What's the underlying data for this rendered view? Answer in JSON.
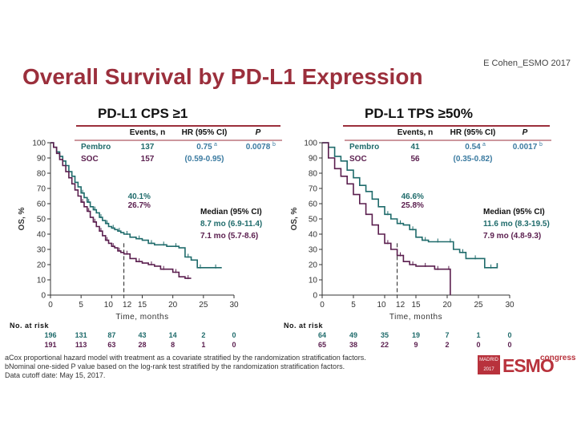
{
  "slide": {
    "title": "Overall Survival by PD-L1 Expression",
    "credit": "E Cohen_ESMO 2017",
    "footnotes": [
      "aCox proportional hazard model with treatment as a covariate stratified by the randomization stratification factors.",
      "bNominal one-sided P value based on the log-rank test stratified by the randomization stratification factors.",
      "Data cutoff date: May 15, 2017."
    ],
    "logo": {
      "city": "MADRID 2017",
      "brand": "ESMO",
      "sub": "congress"
    },
    "colors": {
      "title": "#9b2f3c",
      "pembro": "#1f6b6b",
      "soc": "#5a1e4e",
      "stats": "#3a7aa0"
    }
  },
  "chart_data": [
    {
      "type": "line",
      "title": "PD-L1 CPS ≥1",
      "xlabel": "Time, months",
      "ylabel": "OS, %",
      "xlim": [
        0,
        30
      ],
      "ylim": [
        0,
        100
      ],
      "xticks": [
        0,
        5,
        10,
        12,
        15,
        20,
        25,
        30
      ],
      "yticks": [
        0,
        10,
        20,
        30,
        40,
        50,
        60,
        70,
        80,
        90,
        100
      ],
      "marker_x": 12,
      "marker_labels": [
        "40.1%",
        "26.7%"
      ],
      "table": {
        "headers": [
          "Events, n",
          "HR (95% CI)",
          "P"
        ],
        "rows": [
          {
            "arm": "Pembro",
            "events": "137",
            "hr": "0.75",
            "hr_sup": "a",
            "p": "0.0078",
            "p_sup": "b"
          },
          {
            "arm": "SOC",
            "events": "157",
            "hr": "(0.59-0.95)",
            "hr_sup": "",
            "p": "",
            "p_sup": ""
          }
        ]
      },
      "median": {
        "header": "Median (95% CI)",
        "pembro": "8.7 mo (6.9-11.4)",
        "soc": "7.1 mo (5.7-8.6)"
      },
      "risk": {
        "label": "No. at risk",
        "times": [
          0,
          5,
          10,
          15,
          20,
          25,
          30
        ],
        "pembro": [
          "196",
          "131",
          "87",
          "43",
          "14",
          "2",
          "0"
        ],
        "soc": [
          "191",
          "113",
          "63",
          "28",
          "8",
          "1",
          "0"
        ]
      },
      "series": [
        {
          "name": "Pembro",
          "x": [
            0,
            0.5,
            1,
            1.5,
            2,
            2.5,
            3,
            3.5,
            4,
            4.5,
            5,
            5.5,
            6,
            6.5,
            7,
            7.5,
            8,
            8.5,
            9,
            9.5,
            10,
            10.5,
            11,
            11.5,
            12,
            13,
            14,
            15,
            16,
            17,
            18,
            19,
            20,
            21,
            22,
            23,
            24,
            25,
            26,
            28
          ],
          "y": [
            100,
            97,
            94,
            91,
            88,
            85,
            81,
            78,
            74,
            71,
            67,
            64,
            61,
            58,
            56,
            54,
            51,
            49,
            47,
            45,
            44,
            43,
            42,
            41,
            40,
            38,
            37,
            36,
            34,
            33,
            33,
            32,
            32,
            31,
            25,
            23,
            18,
            18,
            18,
            18
          ]
        },
        {
          "name": "SOC",
          "x": [
            0,
            0.5,
            1,
            1.5,
            2,
            2.5,
            3,
            3.5,
            4,
            4.5,
            5,
            5.5,
            6,
            6.5,
            7,
            7.5,
            8,
            8.5,
            9,
            9.5,
            10,
            10.5,
            11,
            11.5,
            12,
            13,
            14,
            15,
            16,
            17,
            18,
            19,
            20,
            21,
            22,
            23
          ],
          "y": [
            100,
            97,
            93,
            89,
            85,
            81,
            77,
            73,
            69,
            65,
            61,
            58,
            55,
            51,
            48,
            45,
            42,
            39,
            36,
            34,
            32,
            31,
            29,
            28,
            27,
            24,
            22,
            21,
            20,
            19,
            17,
            17,
            15,
            12,
            11,
            11
          ]
        }
      ]
    },
    {
      "type": "line",
      "title": "PD-L1 TPS ≥50%",
      "xlabel": "Time, months",
      "ylabel": "OS, %",
      "xlim": [
        0,
        30
      ],
      "ylim": [
        0,
        100
      ],
      "xticks": [
        0,
        5,
        10,
        12,
        15,
        20,
        25,
        30
      ],
      "yticks": [
        0,
        10,
        20,
        30,
        40,
        50,
        60,
        70,
        80,
        90,
        100
      ],
      "marker_x": 12,
      "marker_labels": [
        "46.6%",
        "25.8%"
      ],
      "table": {
        "headers": [
          "Events, n",
          "HR (95% CI)",
          "P"
        ],
        "rows": [
          {
            "arm": "Pembro",
            "events": "41",
            "hr": "0.54",
            "hr_sup": "a",
            "p": "0.0017",
            "p_sup": "b"
          },
          {
            "arm": "SOC",
            "events": "56",
            "hr": "(0.35-0.82)",
            "hr_sup": "",
            "p": "",
            "p_sup": ""
          }
        ]
      },
      "median": {
        "header": "Median (95% CI)",
        "pembro": "11.6 mo (8.3-19.5)",
        "soc": "7.9 mo (4.8-9.3)"
      },
      "risk": {
        "label": "No. at risk",
        "times": [
          0,
          5,
          10,
          15,
          20,
          25,
          30
        ],
        "pembro": [
          "64",
          "49",
          "35",
          "19",
          "7",
          "1",
          "0"
        ],
        "soc": [
          "65",
          "38",
          "22",
          "9",
          "2",
          "0",
          "0"
        ]
      },
      "series": [
        {
          "name": "Pembro",
          "x": [
            0,
            1,
            2,
            3,
            4,
            5,
            6,
            7,
            8,
            9,
            10,
            11,
            12,
            13,
            14,
            15,
            16,
            17,
            18,
            19,
            20,
            21,
            22,
            23,
            24,
            25,
            26,
            28
          ],
          "y": [
            100,
            97,
            91,
            88,
            82,
            77,
            72,
            68,
            63,
            58,
            53,
            50,
            47,
            46,
            43,
            38,
            36,
            35,
            35,
            35,
            35,
            30,
            28,
            24,
            24,
            24,
            18,
            21
          ]
        },
        {
          "name": "SOC",
          "x": [
            0,
            1,
            2,
            3,
            4,
            5,
            6,
            7,
            8,
            9,
            10,
            11,
            12,
            13,
            14,
            15,
            16,
            17,
            18,
            19,
            20,
            20.5
          ],
          "y": [
            100,
            90,
            83,
            78,
            73,
            66,
            60,
            53,
            46,
            40,
            34,
            30,
            26,
            22,
            20,
            19,
            19,
            19,
            17,
            17,
            17,
            0
          ]
        }
      ]
    }
  ]
}
